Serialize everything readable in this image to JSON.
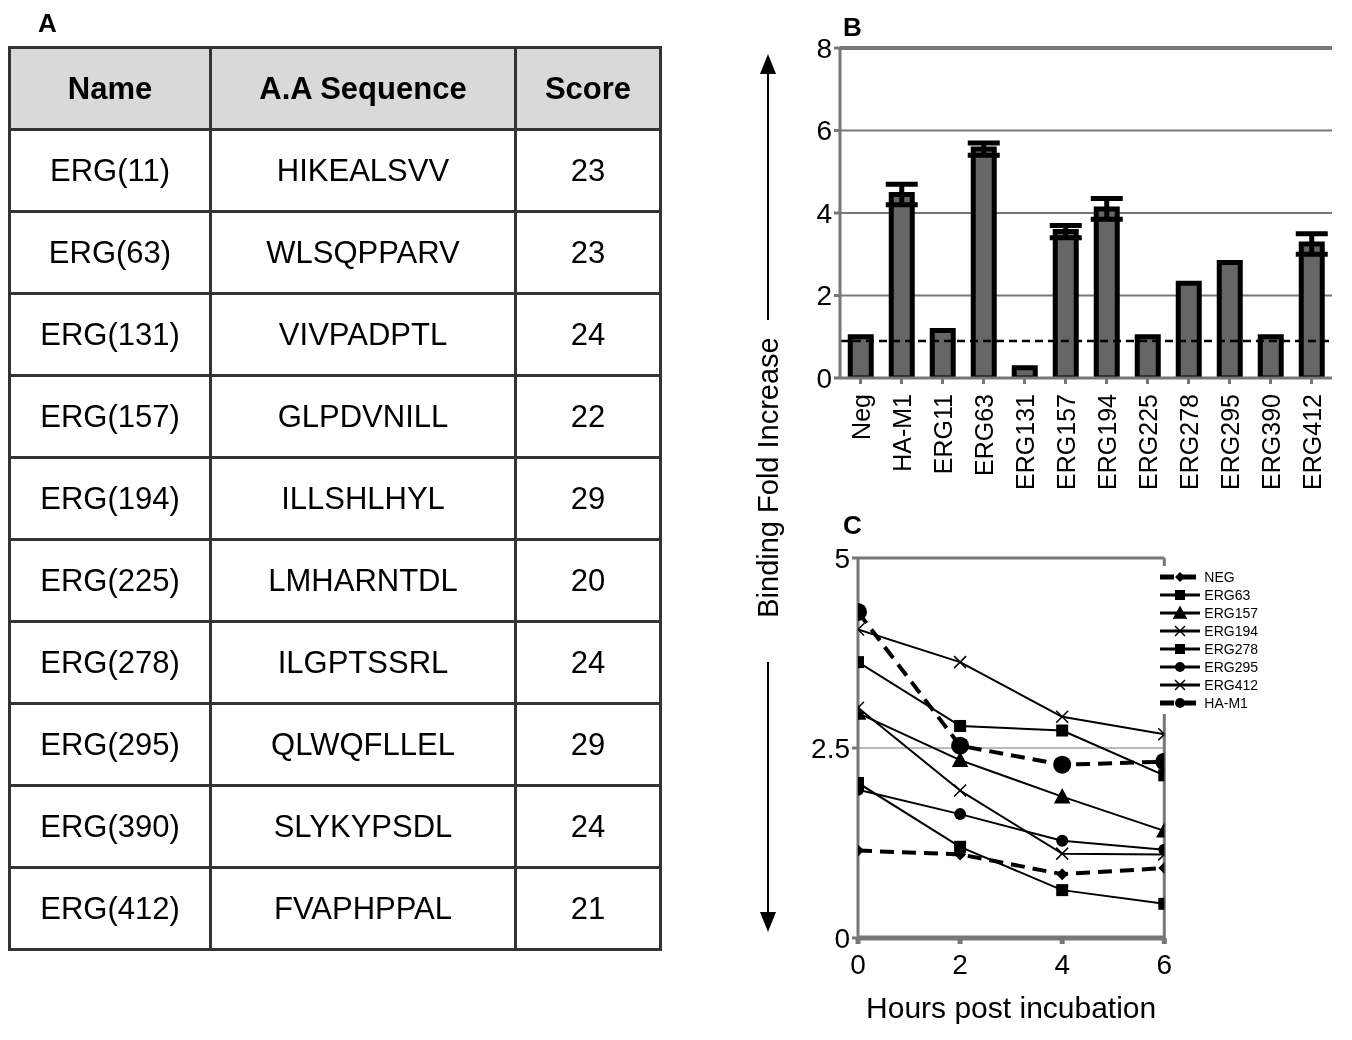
{
  "chart_data": [
    {
      "type": "other",
      "title": "A",
      "categories": [
        "Name",
        "A.A Sequence",
        "Score"
      ],
      "cell_labels": [
        [
          "ERG(11)",
          "HIKEALSVV",
          "23"
        ],
        [
          "ERG(63)",
          "WLSQPPARV",
          "23"
        ],
        [
          "ERG(131)",
          "VIVPADPTL",
          "24"
        ],
        [
          "ERG(157)",
          "GLPDVNILL",
          "22"
        ],
        [
          "ERG(194)",
          "ILLSHLHYL",
          "29"
        ],
        [
          "ERG(225)",
          "LMHARNTDL",
          "20"
        ],
        [
          "ERG(278)",
          "ILGPTSSRL",
          "24"
        ],
        [
          "ERG(295)",
          "QLWQFLLEL",
          "29"
        ],
        [
          "ERG(390)",
          "SLYKYPSDL",
          "24"
        ],
        [
          "ERG(412)",
          "FVAPHPPAL",
          "21"
        ]
      ]
    },
    {
      "type": "bar",
      "title": "B",
      "ylabel": "Binding Fold Increase",
      "categories": [
        "Neg",
        "HA-M1",
        "ERG11",
        "ERG63",
        "ERG131",
        "ERG157",
        "ERG194",
        "ERG225",
        "ERG278",
        "ERG295",
        "ERG390",
        "ERG412"
      ],
      "values": [
        1.0,
        4.45,
        1.15,
        5.55,
        0.25,
        3.55,
        4.1,
        1.0,
        2.3,
        2.8,
        1.0,
        3.25
      ],
      "errors": [
        null,
        0.25,
        null,
        0.15,
        null,
        0.15,
        0.25,
        null,
        null,
        null,
        null,
        0.25
      ],
      "color": "#666666",
      "ylim": [
        0,
        8
      ],
      "yticks": [
        0,
        2,
        4,
        6,
        8
      ],
      "grid": "y",
      "ref_lines": [
        {
          "axis": "y",
          "value": 0.9,
          "line_style": "dashed",
          "color": "#000000"
        }
      ]
    },
    {
      "type": "line",
      "title": "C",
      "xlabel": "Hours post incubation",
      "x": [
        0,
        2,
        4,
        6
      ],
      "xlim": [
        0,
        6
      ],
      "xticks": [
        0,
        2,
        4,
        6
      ],
      "ylim": [
        0,
        5
      ],
      "yticks": [
        0,
        2.5,
        5
      ],
      "grid": "y",
      "legend": "top right",
      "series": [
        {
          "name": "NEG",
          "color": "#000000",
          "marker": "diamond",
          "line_style": "dashed",
          "values": [
            1.15,
            1.1,
            0.84,
            0.92
          ]
        },
        {
          "name": "ERG63",
          "color": "#000000",
          "marker": "square",
          "line_style": "solid",
          "values": [
            3.63,
            2.79,
            2.73,
            2.14
          ]
        },
        {
          "name": "ERG157",
          "color": "#000000",
          "marker": "triangle",
          "line_style": "solid",
          "values": [
            2.96,
            2.34,
            1.86,
            1.41
          ]
        },
        {
          "name": "ERG194",
          "color": "#000000",
          "marker": "cross",
          "line_style": "solid",
          "values": [
            4.06,
            3.63,
            2.91,
            2.68
          ]
        },
        {
          "name": "ERG278",
          "color": "#000000",
          "marker": "square",
          "line_style": "solid",
          "values": [
            2.04,
            1.2,
            0.63,
            0.45
          ]
        },
        {
          "name": "ERG295",
          "color": "#000000",
          "marker": "circle",
          "line_style": "solid",
          "values": [
            1.95,
            1.63,
            1.28,
            1.16
          ]
        },
        {
          "name": "ERG412",
          "color": "#000000",
          "marker": "cross",
          "line_style": "solid",
          "values": [
            3.03,
            1.94,
            1.11,
            1.1
          ]
        },
        {
          "name": "HA-M1",
          "color": "#000000",
          "marker": "circle",
          "line_style": "dashed",
          "values": [
            4.29,
            2.53,
            2.28,
            2.32
          ]
        }
      ]
    }
  ]
}
